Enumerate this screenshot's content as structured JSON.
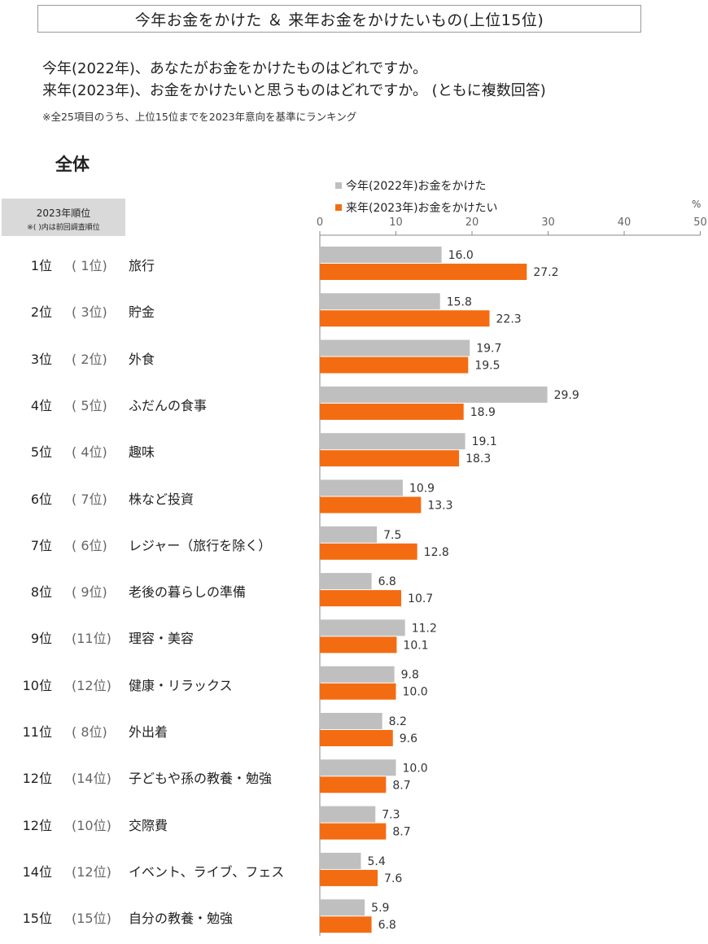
{
  "header": {
    "title": "今年お金をかけた ＆ 来年お金をかけたいもの(上位15位)",
    "question_1": "今年(2022年)、あなたがお金をかけたものはどれですか。",
    "question_2": "来年(2023年)、お金をかけたいと思うものはどれですか。  (ともに複数回答)",
    "note": "※全25項目のうち、上位15位までを2023年意向を基準にランキング",
    "section": "全体"
  },
  "rank_header": {
    "line1": "2023年順位",
    "line2": "※(   )内は前回調査順位"
  },
  "colors": {
    "series_2022": "#bfbfbf",
    "series_2023": "#f36c12"
  },
  "chart_data": {
    "type": "bar",
    "orientation": "horizontal",
    "unit": "%",
    "xlim": [
      0,
      50
    ],
    "xticks": [
      0,
      10,
      20,
      30,
      40,
      50
    ],
    "legend_position": "top",
    "categories": [
      {
        "rank": "1位",
        "prev": "( 1位)",
        "item": "旅行"
      },
      {
        "rank": "2位",
        "prev": "( 3位)",
        "item": "貯金"
      },
      {
        "rank": "3位",
        "prev": "( 2位)",
        "item": "外食"
      },
      {
        "rank": "4位",
        "prev": "( 5位)",
        "item": "ふだんの食事"
      },
      {
        "rank": "5位",
        "prev": "( 4位)",
        "item": "趣味"
      },
      {
        "rank": "6位",
        "prev": "( 7位)",
        "item": "株など投資"
      },
      {
        "rank": "7位",
        "prev": "( 6位)",
        "item": "レジャー（旅行を除く）"
      },
      {
        "rank": "8位",
        "prev": "( 9位)",
        "item": "老後の暮らしの準備"
      },
      {
        "rank": "9位",
        "prev": "(11位)",
        "item": "理容・美容"
      },
      {
        "rank": "10位",
        "prev": "(12位)",
        "item": "健康・リラックス"
      },
      {
        "rank": "11位",
        "prev": "( 8位)",
        "item": "外出着"
      },
      {
        "rank": "12位",
        "prev": "(14位)",
        "item": "子どもや孫の教養・勉強"
      },
      {
        "rank": "12位",
        "prev": "(10位)",
        "item": "交際費"
      },
      {
        "rank": "14位",
        "prev": "(12位)",
        "item": "イベント、ライブ、フェス"
      },
      {
        "rank": "15位",
        "prev": "(15位)",
        "item": "自分の教養・勉強"
      }
    ],
    "series": [
      {
        "name": "今年(2022年)お金をかけた",
        "values": [
          16.0,
          15.8,
          19.7,
          29.9,
          19.1,
          10.9,
          7.5,
          6.8,
          11.2,
          9.8,
          8.2,
          10.0,
          7.3,
          5.4,
          5.9
        ]
      },
      {
        "name": "来年(2023年)お金をかけたい",
        "values": [
          27.2,
          22.3,
          19.5,
          18.9,
          18.3,
          13.3,
          12.8,
          10.7,
          10.1,
          10.0,
          9.6,
          8.7,
          8.7,
          7.6,
          6.8
        ]
      }
    ]
  }
}
